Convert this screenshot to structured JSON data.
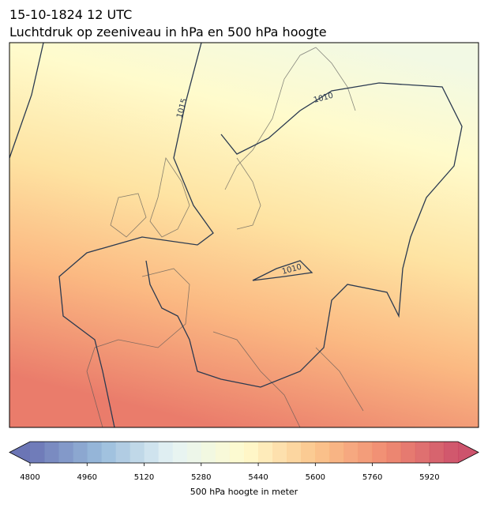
{
  "header": {
    "title_lines": [
      "15-10-1824 12 UTC",
      "Luchtdruk op zeeniveau in hPa en 500 hPa hoogte"
    ]
  },
  "map": {
    "contour_labels": [
      "1015",
      "1010",
      "1010"
    ]
  },
  "colorbar": {
    "label": "500 hPa hoogte in meter",
    "lim": [
      4800,
      6000
    ],
    "ticks": [
      4800,
      4960,
      5120,
      5280,
      5440,
      5600,
      5760,
      5920
    ],
    "color_stops": [
      "#5b66ad",
      "#8fb5d8",
      "#e3f2f4",
      "#fffbc8",
      "#fbbf80",
      "#ee7f63",
      "#c8405c"
    ]
  }
}
